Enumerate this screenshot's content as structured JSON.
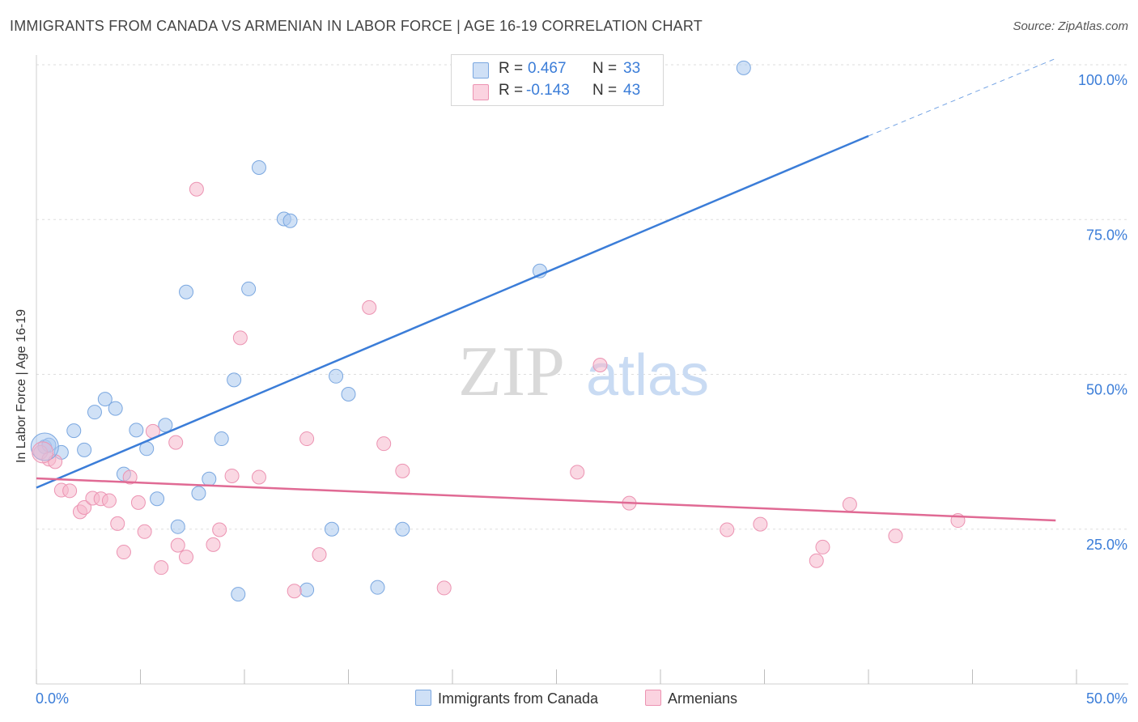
{
  "header": {
    "title": "IMMIGRANTS FROM CANADA VS ARMENIAN IN LABOR FORCE | AGE 16-19 CORRELATION CHART",
    "source": "Source: ZipAtlas.com"
  },
  "watermark": {
    "zip": "ZIP",
    "atlas": "atlas"
  },
  "legend": {
    "rows": [
      {
        "r_label": "R =",
        "r_value": "0.467",
        "n_label": "N =",
        "n_value": "33",
        "color": "#a9c8ef"
      },
      {
        "r_label": "R =",
        "r_value": "-0.143",
        "n_label": "N =",
        "n_value": "43",
        "color": "#f6b8cc"
      }
    ]
  },
  "bottom_legend": [
    {
      "label": "Immigrants from Canada",
      "color": "#a9c8ef"
    },
    {
      "label": "Armenians",
      "color": "#f6b8cc"
    }
  ],
  "chart_data": {
    "type": "scatter",
    "title": "IMMIGRANTS FROM CANADA VS ARMENIAN IN LABOR FORCE | AGE 16-19 CORRELATION CHART",
    "xlabel": "",
    "ylabel": "In Labor Force | Age 16-19",
    "xlim": [
      0,
      50
    ],
    "ylim": [
      0,
      102
    ],
    "x_tick_labels": [
      "0.0%",
      "50.0%"
    ],
    "y_ticks": [
      25,
      50,
      75,
      100
    ],
    "y_tick_labels": [
      "25.0%",
      "50.0%",
      "75.0%",
      "100.0%"
    ],
    "grid": "horizontal dashed",
    "legend_position": "top-center",
    "series": [
      {
        "name": "Immigrants from Canada",
        "color": "#3b7dd8",
        "fill": "#a9c8ef",
        "r": 0.467,
        "n": 33,
        "trend": {
          "x": [
            0,
            40
          ],
          "y": [
            31.7,
            88.5
          ],
          "dashed_to": [
            49,
            101
          ]
        },
        "points": [
          [
            0.4,
            38.3
          ],
          [
            0.6,
            38.6
          ],
          [
            1.2,
            37.4
          ],
          [
            1.8,
            40.9
          ],
          [
            2.3,
            37.8
          ],
          [
            2.8,
            43.9
          ],
          [
            3.3,
            46.0
          ],
          [
            3.8,
            44.5
          ],
          [
            4.2,
            33.9
          ],
          [
            4.8,
            41.0
          ],
          [
            5.3,
            38.0
          ],
          [
            5.8,
            29.9
          ],
          [
            6.2,
            41.8
          ],
          [
            6.8,
            25.4
          ],
          [
            7.2,
            63.3
          ],
          [
            7.8,
            30.8
          ],
          [
            8.3,
            33.1
          ],
          [
            8.9,
            39.6
          ],
          [
            9.5,
            49.1
          ],
          [
            9.7,
            14.5
          ],
          [
            10.2,
            63.8
          ],
          [
            10.7,
            83.4
          ],
          [
            11.9,
            75.1
          ],
          [
            12.2,
            74.8
          ],
          [
            13.0,
            15.2
          ],
          [
            14.2,
            25.0
          ],
          [
            14.4,
            49.7
          ],
          [
            15.0,
            46.8
          ],
          [
            16.4,
            15.6
          ],
          [
            17.6,
            25.0
          ],
          [
            20.6,
            99.8
          ],
          [
            24.2,
            66.7
          ],
          [
            34.0,
            99.5
          ]
        ]
      },
      {
        "name": "Armenians",
        "color": "#e06a94",
        "fill": "#f6b8cc",
        "r": -0.143,
        "n": 43,
        "trend": {
          "x": [
            0,
            49
          ],
          "y": [
            33.2,
            26.4
          ]
        },
        "points": [
          [
            0.2,
            37.4
          ],
          [
            0.6,
            36.3
          ],
          [
            0.9,
            35.9
          ],
          [
            1.2,
            31.3
          ],
          [
            1.6,
            31.2
          ],
          [
            2.1,
            27.8
          ],
          [
            2.3,
            28.5
          ],
          [
            2.7,
            30.0
          ],
          [
            3.1,
            29.9
          ],
          [
            3.5,
            29.6
          ],
          [
            3.9,
            25.9
          ],
          [
            4.2,
            21.3
          ],
          [
            4.5,
            33.4
          ],
          [
            4.9,
            29.3
          ],
          [
            5.2,
            24.6
          ],
          [
            5.6,
            40.8
          ],
          [
            6.0,
            18.8
          ],
          [
            6.7,
            39.0
          ],
          [
            6.8,
            22.4
          ],
          [
            7.2,
            20.5
          ],
          [
            7.7,
            79.9
          ],
          [
            8.5,
            22.5
          ],
          [
            8.8,
            24.9
          ],
          [
            9.4,
            33.6
          ],
          [
            9.8,
            55.9
          ],
          [
            10.7,
            33.4
          ],
          [
            12.4,
            15.0
          ],
          [
            13.0,
            39.6
          ],
          [
            13.6,
            20.9
          ],
          [
            16.0,
            60.8
          ],
          [
            16.7,
            38.8
          ],
          [
            17.6,
            34.4
          ],
          [
            19.6,
            15.5
          ],
          [
            26.0,
            34.2
          ],
          [
            27.1,
            51.5
          ],
          [
            28.5,
            29.2
          ],
          [
            33.2,
            24.9
          ],
          [
            34.8,
            25.8
          ],
          [
            37.5,
            19.9
          ],
          [
            37.8,
            22.1
          ],
          [
            39.1,
            29.0
          ],
          [
            41.3,
            23.9
          ],
          [
            44.3,
            26.4
          ]
        ]
      }
    ]
  }
}
